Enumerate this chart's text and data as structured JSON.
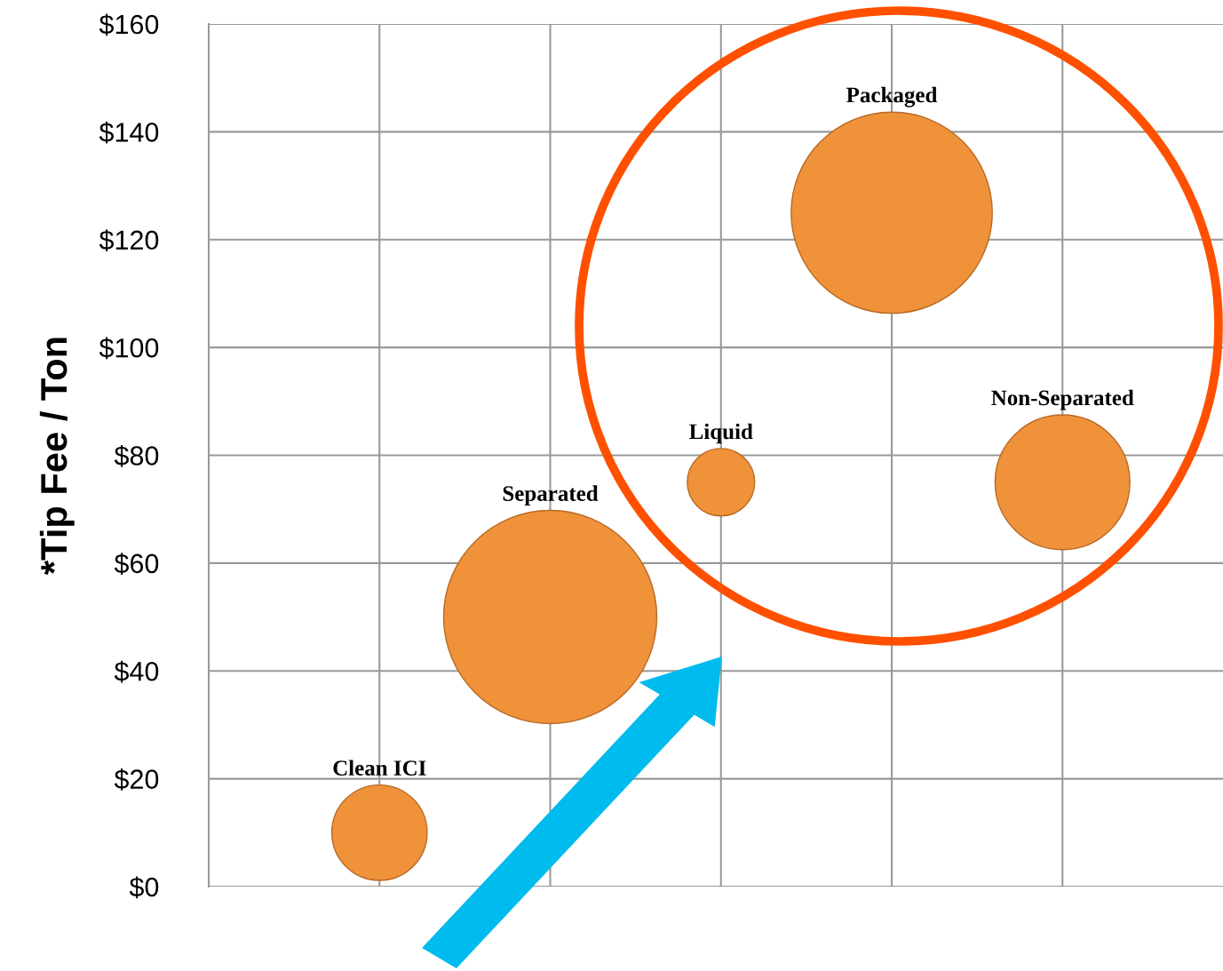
{
  "chart_data": {
    "type": "bubble",
    "ylabel": "*Tip Fee / Ton",
    "categories": [
      null,
      null,
      null,
      null,
      null
    ],
    "series": [
      {
        "name": "Clean ICI",
        "color": "#f0923a",
        "values": [
          10,
          null,
          null,
          null,
          null
        ],
        "sizes": [
          0.2,
          null,
          null,
          null,
          null
        ]
      },
      {
        "name": "Separated",
        "color": "#f0923a",
        "values": [
          null,
          50,
          null,
          null,
          null
        ],
        "sizes": [
          null,
          1,
          null,
          null,
          null
        ]
      },
      {
        "name": "Liquid",
        "color": "#f0923a",
        "values": [
          null,
          null,
          75,
          null,
          null
        ],
        "sizes": [
          null,
          null,
          0.1,
          null,
          null
        ]
      },
      {
        "name": "Packaged",
        "color": "#f0923a",
        "values": [
          null,
          null,
          null,
          125,
          null
        ],
        "sizes": [
          null,
          null,
          null,
          0.89,
          null
        ]
      },
      {
        "name": "Non-Separated",
        "color": "#f0923a",
        "values": [
          null,
          null,
          null,
          null,
          75
        ],
        "sizes": [
          null,
          null,
          null,
          null,
          0.4
        ]
      }
    ],
    "ylim": [
      0,
      160
    ],
    "yticks": [
      {
        "value": 0,
        "label": "$0"
      },
      {
        "value": 20,
        "label": "$20"
      },
      {
        "value": 40,
        "label": "$40"
      },
      {
        "value": 60,
        "label": "$60"
      },
      {
        "value": 80,
        "label": "$80"
      },
      {
        "value": 100,
        "label": "$100"
      },
      {
        "value": 120,
        "label": "$120"
      },
      {
        "value": 140,
        "label": "$140"
      },
      {
        "value": 160,
        "label": "$160"
      }
    ],
    "grid": true,
    "tick_labels": "y",
    "legend": false
  }
}
